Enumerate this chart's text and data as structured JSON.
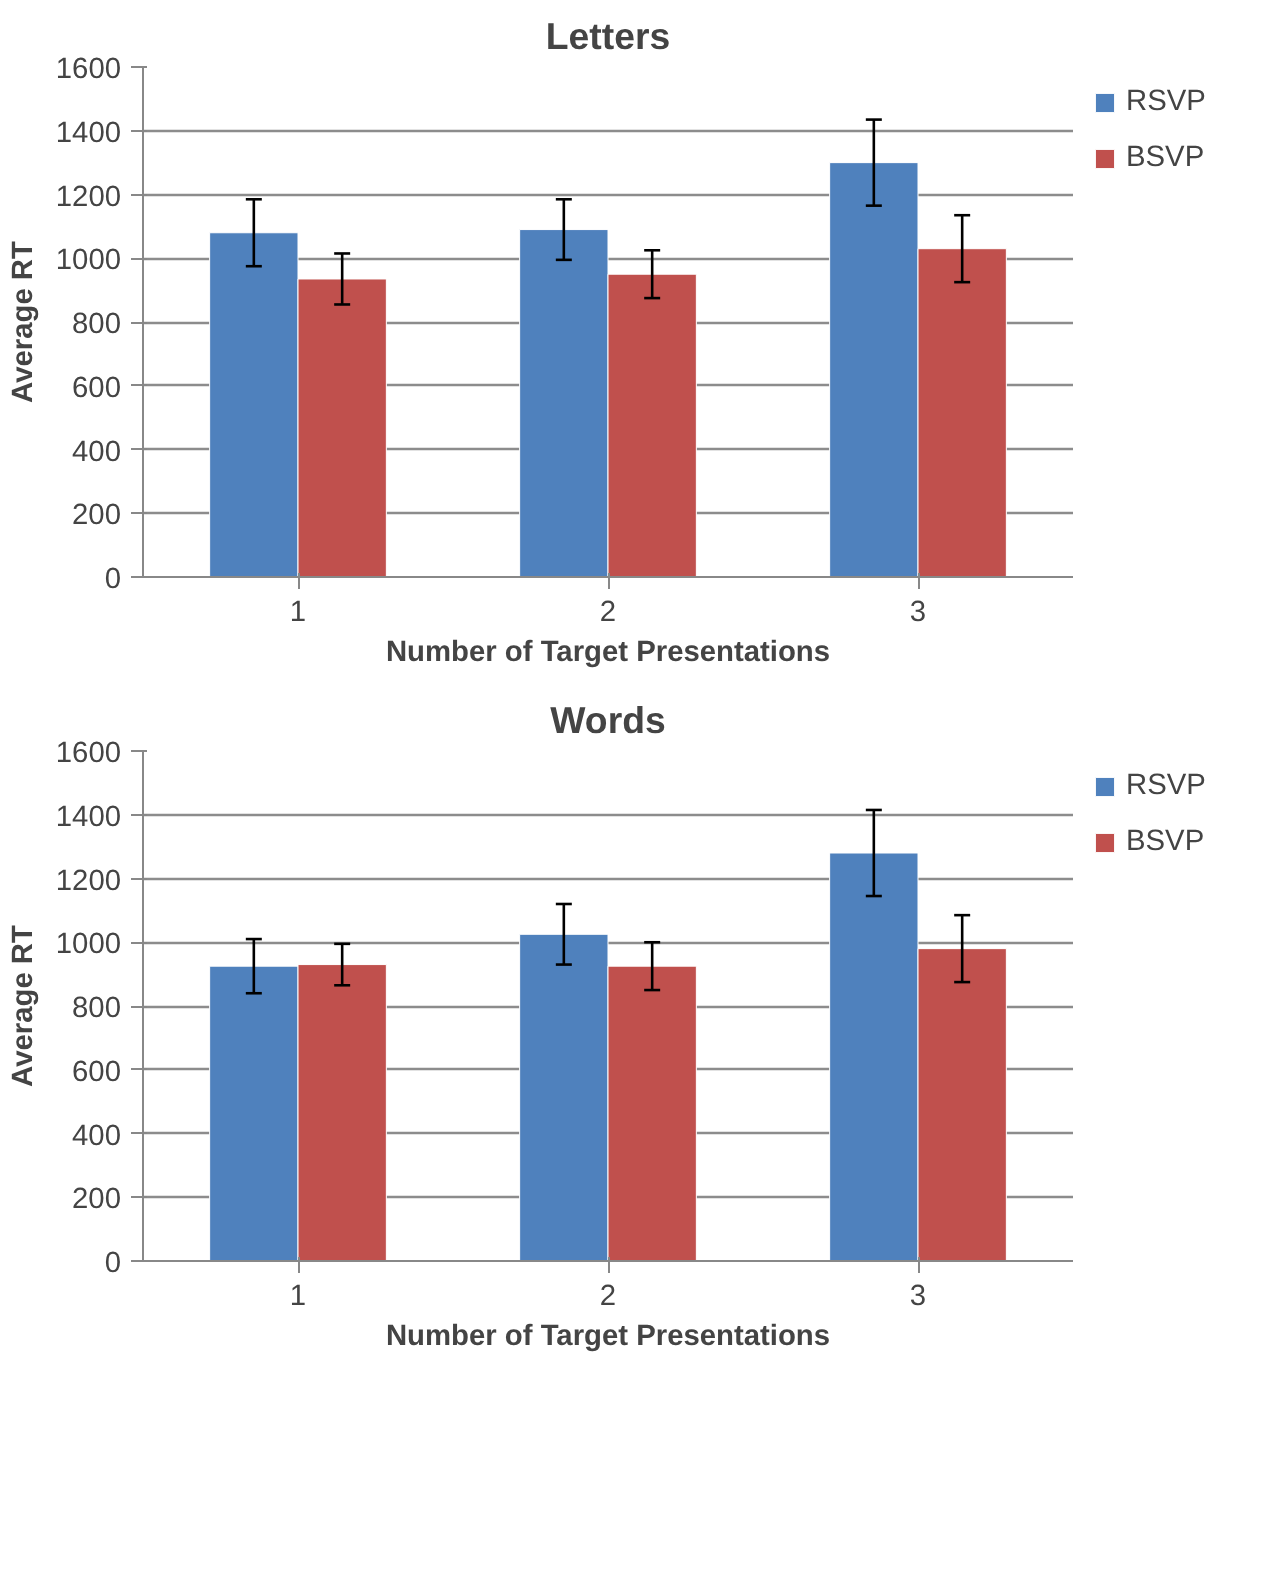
{
  "chart_data": [
    {
      "type": "bar",
      "title": "Letters",
      "xlabel": "Number of Target Presentations",
      "ylabel": "Average RT",
      "categories": [
        "1",
        "2",
        "3"
      ],
      "ylim": [
        0,
        1600
      ],
      "yticks": [
        0,
        200,
        400,
        600,
        800,
        1000,
        1200,
        1400,
        1600
      ],
      "grid": "y",
      "legend": "right",
      "series": [
        {
          "name": "RSVP",
          "color": "#4f81bd",
          "values": [
            1080,
            1090,
            1300
          ],
          "errors": [
            105,
            95,
            135
          ]
        },
        {
          "name": "BSVP",
          "color": "#c0504d",
          "values": [
            935,
            950,
            1030
          ],
          "errors": [
            80,
            75,
            105
          ]
        }
      ]
    },
    {
      "type": "bar",
      "title": "Words",
      "xlabel": "Number of Target Presentations",
      "ylabel": "Average RT",
      "categories": [
        "1",
        "2",
        "3"
      ],
      "ylim": [
        0,
        1600
      ],
      "yticks": [
        0,
        200,
        400,
        600,
        800,
        1000,
        1200,
        1400,
        1600
      ],
      "grid": "y",
      "legend": "right",
      "series": [
        {
          "name": "RSVP",
          "color": "#4f81bd",
          "values": [
            925,
            1025,
            1280
          ],
          "errors": [
            85,
            95,
            135
          ]
        },
        {
          "name": "BSVP",
          "color": "#c0504d",
          "values": [
            930,
            925,
            980
          ],
          "errors": [
            65,
            75,
            105
          ]
        }
      ]
    }
  ]
}
